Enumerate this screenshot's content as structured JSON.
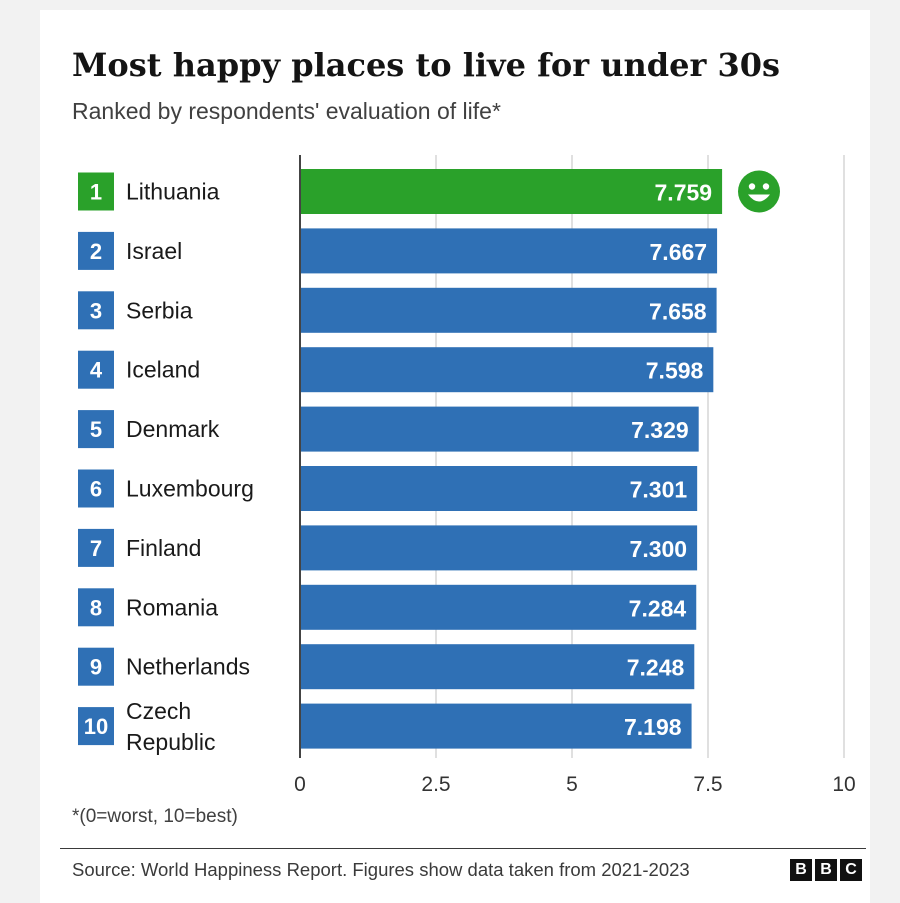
{
  "colors": {
    "highlight": "#2aa12a",
    "bar": "#2f70b5",
    "grid": "#cccccc",
    "axis": "#444444",
    "text": "#1a1a1a"
  },
  "chart_data": {
    "type": "bar",
    "orientation": "horizontal",
    "title": "Most happy places to live for under 30s",
    "subtitle": "Ranked by respondents' evaluation of life*",
    "ranks": [
      "1",
      "2",
      "3",
      "4",
      "5",
      "6",
      "7",
      "8",
      "9",
      "10"
    ],
    "categories": [
      "Lithuania",
      "Israel",
      "Serbia",
      "Iceland",
      "Denmark",
      "Luxembourg",
      "Finland",
      "Romania",
      "Netherlands",
      "Czech Republic"
    ],
    "category_lines": [
      [
        "Lithuania"
      ],
      [
        "Israel"
      ],
      [
        "Serbia"
      ],
      [
        "Iceland"
      ],
      [
        "Denmark"
      ],
      [
        "Luxembourg"
      ],
      [
        "Finland"
      ],
      [
        "Romania"
      ],
      [
        "Netherlands"
      ],
      [
        "Czech",
        "Republic"
      ]
    ],
    "values": [
      7.759,
      7.667,
      7.658,
      7.598,
      7.329,
      7.301,
      7.3,
      7.284,
      7.248,
      7.198
    ],
    "value_labels": [
      "7.759",
      "7.667",
      "7.658",
      "7.598",
      "7.329",
      "7.301",
      "7.300",
      "7.284",
      "7.248",
      "7.198"
    ],
    "highlight_index": 0,
    "highlight_icon": "smiley-face-icon",
    "xlim": [
      0,
      10
    ],
    "xticks": [
      0,
      2.5,
      5,
      7.5,
      10
    ],
    "xtick_labels": [
      "0",
      "2.5",
      "5",
      "7.5",
      "10"
    ],
    "grid": true,
    "footnote": "*(0=worst, 10=best)",
    "source": "Source: World Happiness Report. Figures show data taken from 2021-2023",
    "logo_letters": [
      "B",
      "B",
      "C"
    ]
  }
}
